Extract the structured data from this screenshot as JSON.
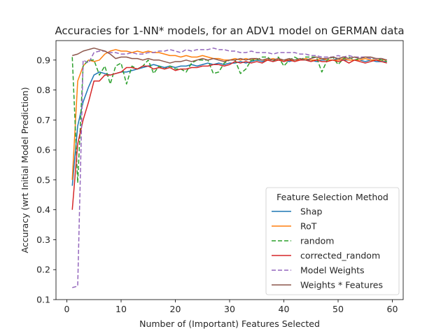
{
  "chart_data": {
    "type": "line",
    "title": "Accuracies for 1-NN* models, for an ADV1 model on GERMAN data",
    "xlabel": "Number of (Important) Features Selected",
    "ylabel": "Accuracy (wrt Initial Model Prediction)",
    "xlim": [
      -2.0,
      62.0
    ],
    "ylim": [
      0.1,
      0.965
    ],
    "xticks": [
      0,
      10,
      20,
      30,
      40,
      50,
      60
    ],
    "yticks": [
      0.1,
      0.2,
      0.3,
      0.4,
      0.5,
      0.6,
      0.7,
      0.8,
      0.9
    ],
    "grid": false,
    "legend": {
      "title": "Feature Selection Method",
      "position": "lower-right"
    },
    "x": [
      1,
      2,
      3,
      4,
      5,
      6,
      7,
      8,
      9,
      10,
      11,
      12,
      13,
      14,
      15,
      16,
      17,
      18,
      19,
      20,
      21,
      22,
      23,
      24,
      25,
      26,
      27,
      28,
      29,
      30,
      31,
      32,
      33,
      34,
      35,
      36,
      37,
      38,
      39,
      40,
      41,
      42,
      43,
      44,
      45,
      46,
      47,
      48,
      49,
      50,
      51,
      52,
      53,
      54,
      55,
      56,
      57,
      58,
      59
    ],
    "series": [
      {
        "name": "Shap",
        "color": "#1f77b4",
        "dash": "solid",
        "values": [
          0.48,
          0.68,
          0.76,
          0.81,
          0.85,
          0.86,
          0.855,
          0.85,
          0.855,
          0.86,
          0.86,
          0.865,
          0.87,
          0.875,
          0.88,
          0.885,
          0.88,
          0.875,
          0.88,
          0.875,
          0.88,
          0.88,
          0.885,
          0.88,
          0.885,
          0.89,
          0.885,
          0.89,
          0.885,
          0.89,
          0.89,
          0.895,
          0.89,
          0.895,
          0.9,
          0.895,
          0.9,
          0.895,
          0.9,
          0.9,
          0.895,
          0.9,
          0.9,
          0.9,
          0.9,
          0.895,
          0.9,
          0.9,
          0.9,
          0.905,
          0.9,
          0.9,
          0.9,
          0.9,
          0.895,
          0.9,
          0.895,
          0.895,
          0.895
        ]
      },
      {
        "name": "RoT",
        "color": "#ff7f0e",
        "dash": "solid",
        "values": [
          0.5,
          0.83,
          0.88,
          0.9,
          0.895,
          0.9,
          0.92,
          0.93,
          0.935,
          0.93,
          0.93,
          0.925,
          0.93,
          0.925,
          0.93,
          0.925,
          0.925,
          0.92,
          0.915,
          0.915,
          0.91,
          0.915,
          0.91,
          0.91,
          0.915,
          0.91,
          0.905,
          0.905,
          0.9,
          0.9,
          0.905,
          0.9,
          0.905,
          0.9,
          0.905,
          0.9,
          0.9,
          0.905,
          0.9,
          0.9,
          0.9,
          0.9,
          0.9,
          0.905,
          0.9,
          0.9,
          0.905,
          0.9,
          0.9,
          0.9,
          0.905,
          0.9,
          0.9,
          0.9,
          0.905,
          0.9,
          0.9,
          0.9,
          0.9
        ]
      },
      {
        "name": "random",
        "color": "#2ca02c",
        "dash": "dashed",
        "values": [
          0.91,
          0.49,
          0.88,
          0.9,
          0.9,
          0.85,
          0.88,
          0.82,
          0.88,
          0.89,
          0.82,
          0.88,
          0.87,
          0.88,
          0.9,
          0.855,
          0.88,
          0.87,
          0.88,
          0.87,
          0.87,
          0.86,
          0.89,
          0.9,
          0.9,
          0.9,
          0.855,
          0.86,
          0.89,
          0.9,
          0.9,
          0.855,
          0.87,
          0.9,
          0.9,
          0.91,
          0.91,
          0.895,
          0.91,
          0.88,
          0.9,
          0.91,
          0.9,
          0.91,
          0.91,
          0.91,
          0.86,
          0.9,
          0.91,
          0.885,
          0.905,
          0.91,
          0.9,
          0.905,
          0.91,
          0.905,
          0.905,
          0.9,
          0.895
        ]
      },
      {
        "name": "corrected_random",
        "color": "#d62728",
        "dash": "solid",
        "values": [
          0.4,
          0.62,
          0.7,
          0.76,
          0.83,
          0.83,
          0.85,
          0.85,
          0.855,
          0.86,
          0.875,
          0.875,
          0.87,
          0.88,
          0.88,
          0.87,
          0.875,
          0.87,
          0.875,
          0.865,
          0.87,
          0.87,
          0.875,
          0.875,
          0.88,
          0.88,
          0.885,
          0.885,
          0.88,
          0.885,
          0.895,
          0.89,
          0.895,
          0.89,
          0.895,
          0.89,
          0.9,
          0.895,
          0.9,
          0.895,
          0.9,
          0.895,
          0.9,
          0.9,
          0.895,
          0.9,
          0.895,
          0.895,
          0.9,
          0.895,
          0.9,
          0.89,
          0.9,
          0.895,
          0.89,
          0.895,
          0.9,
          0.895,
          0.89
        ]
      },
      {
        "name": "Model Weights",
        "color": "#9467bd",
        "dash": "dashed",
        "values": [
          0.14,
          0.145,
          0.9,
          0.89,
          0.925,
          0.93,
          0.93,
          0.925,
          0.925,
          0.92,
          0.92,
          0.925,
          0.92,
          0.92,
          0.925,
          0.925,
          0.93,
          0.93,
          0.935,
          0.93,
          0.925,
          0.935,
          0.93,
          0.935,
          0.935,
          0.935,
          0.94,
          0.935,
          0.935,
          0.93,
          0.93,
          0.925,
          0.925,
          0.93,
          0.925,
          0.925,
          0.925,
          0.92,
          0.925,
          0.925,
          0.925,
          0.925,
          0.92,
          0.92,
          0.915,
          0.915,
          0.91,
          0.91,
          0.91,
          0.915,
          0.91,
          0.915,
          0.91,
          0.91,
          0.91,
          0.905,
          0.905,
          0.905,
          0.9
        ]
      },
      {
        "name": "Weights * Features",
        "color": "#8c564b",
        "dash": "solid",
        "values": [
          0.915,
          0.92,
          0.93,
          0.935,
          0.94,
          0.935,
          0.93,
          0.92,
          0.905,
          0.91,
          0.91,
          0.905,
          0.905,
          0.9,
          0.905,
          0.9,
          0.9,
          0.895,
          0.89,
          0.895,
          0.895,
          0.9,
          0.895,
          0.9,
          0.905,
          0.9,
          0.905,
          0.9,
          0.895,
          0.9,
          0.9,
          0.905,
          0.9,
          0.905,
          0.905,
          0.9,
          0.905,
          0.9,
          0.905,
          0.9,
          0.905,
          0.9,
          0.905,
          0.9,
          0.905,
          0.91,
          0.905,
          0.905,
          0.91,
          0.905,
          0.91,
          0.905,
          0.91,
          0.905,
          0.91,
          0.91,
          0.905,
          0.905,
          0.9
        ]
      }
    ]
  }
}
